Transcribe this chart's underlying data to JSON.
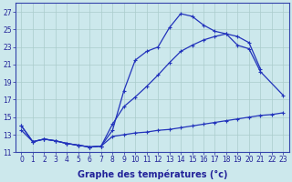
{
  "xlabel": "Graphe des températures (°c)",
  "bg_color": "#cce8ec",
  "grid_color": "#aacccc",
  "line_color": "#2233bb",
  "xlim": [
    -0.5,
    23.5
  ],
  "ylim": [
    11,
    28
  ],
  "xticks": [
    0,
    1,
    2,
    3,
    4,
    5,
    6,
    7,
    8,
    9,
    10,
    11,
    12,
    13,
    14,
    15,
    16,
    17,
    18,
    19,
    20,
    21,
    22,
    23
  ],
  "yticks": [
    11,
    13,
    15,
    17,
    19,
    21,
    23,
    25,
    27
  ],
  "curve1_x": [
    0,
    1,
    2,
    3,
    4,
    5,
    6,
    7,
    8,
    9,
    10,
    11,
    12,
    13,
    14,
    15,
    16,
    17,
    18,
    19,
    20,
    21
  ],
  "curve1_y": [
    14.0,
    12.2,
    12.5,
    12.3,
    12.0,
    11.8,
    11.6,
    11.7,
    13.5,
    18.0,
    21.5,
    22.5,
    23.0,
    25.2,
    26.8,
    26.5,
    25.5,
    24.8,
    24.5,
    24.2,
    23.5,
    20.5
  ],
  "curve2_x": [
    0,
    1,
    2,
    3,
    4,
    5,
    6,
    7,
    8,
    9,
    10,
    11,
    12,
    13,
    14,
    15,
    16,
    17,
    18,
    19,
    20,
    21,
    23
  ],
  "curve2_y": [
    14.0,
    12.2,
    12.5,
    12.3,
    12.0,
    11.8,
    11.6,
    11.7,
    14.2,
    16.2,
    17.3,
    18.5,
    19.8,
    21.2,
    22.5,
    23.2,
    23.8,
    24.2,
    24.5,
    23.2,
    22.8,
    20.2,
    17.5
  ],
  "curve3_x": [
    0,
    1,
    2,
    3,
    4,
    5,
    6,
    7,
    8,
    9,
    10,
    11,
    12,
    13,
    14,
    15,
    16,
    17,
    18,
    19,
    20,
    21,
    22,
    23
  ],
  "curve3_y": [
    13.5,
    12.2,
    12.5,
    12.3,
    12.0,
    11.8,
    11.6,
    11.7,
    12.8,
    13.0,
    13.2,
    13.3,
    13.5,
    13.6,
    13.8,
    14.0,
    14.2,
    14.4,
    14.6,
    14.8,
    15.0,
    15.2,
    15.3,
    15.5
  ],
  "markersize": 3,
  "linewidth": 0.9,
  "xlabel_fontsize": 7,
  "tick_fontsize": 5.5
}
